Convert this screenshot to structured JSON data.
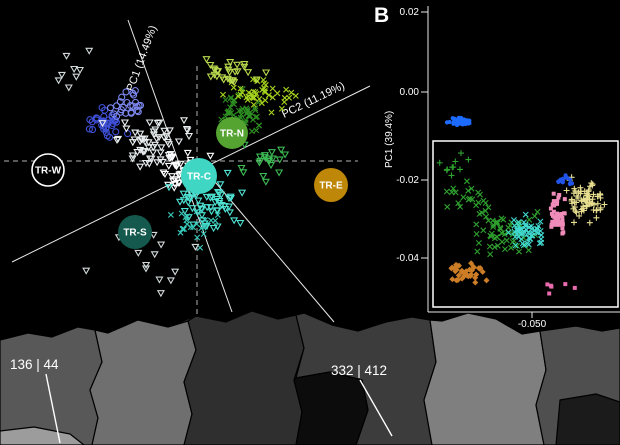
{
  "panel_b": {
    "panel_label": "B",
    "y_tick_labels": [
      "0.02",
      "0.00",
      "-0.02",
      "-0.04"
    ],
    "x_tick_labels": [
      "-0.050"
    ]
  },
  "map": {
    "annotations": [
      {
        "text": "136 | 44"
      },
      {
        "text": "332 | 412"
      }
    ]
  },
  "colors": {
    "background": "#000000",
    "axis": "#e8e8e8",
    "highlight_box": "#ffffff"
  },
  "chart_data": [
    {
      "type": "scatter",
      "panel": "A",
      "ylabel": "PC1 (14.49%)",
      "xlabel": "PC2 (11.19%)",
      "legend_position": "on-plot-badges",
      "grid": "dashed-crosshair",
      "groups": [
        {
          "label": "TR-W",
          "x": 48,
          "y": 170,
          "r": 16,
          "fill": "#000000",
          "stroke": "#ffffff",
          "text_color": "#ffffff"
        },
        {
          "label": "TR-N",
          "x": 232,
          "y": 133,
          "r": 16,
          "fill": "#55a330",
          "stroke": "none",
          "text_color": "#ffffff"
        },
        {
          "label": "TR-C",
          "x": 199,
          "y": 176,
          "r": 18,
          "fill": "#3fd6c4",
          "stroke": "none",
          "text_color": "#ffffff"
        },
        {
          "label": "TR-E",
          "x": 331,
          "y": 185,
          "r": 17,
          "fill": "#bf8708",
          "stroke": "none",
          "text_color": "#ffffff"
        },
        {
          "label": "TR-S",
          "x": 135,
          "y": 232,
          "r": 17,
          "fill": "#15594e",
          "stroke": "none",
          "text_color": "#ffffff"
        }
      ],
      "clusters": [
        {
          "name": "blue-open-circles-dark",
          "marker": "circle-open",
          "color": "#3f50d8",
          "count": 35,
          "cx": 108,
          "cy": 122,
          "sx": 22,
          "sy": 17
        },
        {
          "name": "blue-open-circles-light",
          "marker": "circle-open",
          "color": "#7c87ef",
          "count": 25,
          "cx": 129,
          "cy": 104,
          "sx": 20,
          "sy": 14
        },
        {
          "name": "white-open-triangles-wide",
          "marker": "tri-open",
          "color": "#e9eef0",
          "count": 60,
          "cx": 152,
          "cy": 142,
          "sx": 46,
          "sy": 33
        },
        {
          "name": "white-open-triangles-core",
          "marker": "tri-open",
          "color": "#ffffff",
          "count": 45,
          "cx": 185,
          "cy": 168,
          "sx": 26,
          "sy": 21
        },
        {
          "name": "cyan-open-triangles",
          "marker": "tri-open",
          "color": "#4fe3d4",
          "count": 65,
          "cx": 207,
          "cy": 202,
          "sx": 36,
          "sy": 29
        },
        {
          "name": "green-x",
          "marker": "x",
          "color": "#2e8f22",
          "count": 55,
          "cx": 240,
          "cy": 116,
          "sx": 33,
          "sy": 26
        },
        {
          "name": "yellowgreen-x",
          "marker": "x",
          "color": "#a6d41f",
          "count": 45,
          "cx": 262,
          "cy": 94,
          "sx": 34,
          "sy": 18
        },
        {
          "name": "yellowgreen-open-triangles",
          "marker": "tri-open",
          "color": "#bada4e",
          "count": 28,
          "cx": 228,
          "cy": 72,
          "sx": 40,
          "sy": 13
        },
        {
          "name": "green-open-triangles",
          "marker": "tri-open",
          "color": "#3dbb55",
          "count": 20,
          "cx": 268,
          "cy": 160,
          "sx": 27,
          "sy": 21
        },
        {
          "name": "cyan-x",
          "marker": "x",
          "color": "#38c9ba",
          "count": 25,
          "cx": 195,
          "cy": 226,
          "sx": 29,
          "sy": 21
        },
        {
          "name": "white-outlier-triangles-low",
          "marker": "tri-open",
          "color": "#d2dadc",
          "count": 14,
          "cx": 150,
          "cy": 262,
          "sx": 80,
          "sy": 34
        },
        {
          "name": "white-outlier-triangles-left",
          "marker": "tri-open",
          "color": "#d2dadc",
          "count": 8,
          "cx": 72,
          "cy": 72,
          "sx": 42,
          "sy": 28
        }
      ]
    },
    {
      "type": "scatter",
      "panel": "B",
      "ylabel": "PC1 (39.4%)",
      "y_ticks": [
        0.02,
        0.0,
        -0.02,
        -0.04
      ],
      "x_ticks": [
        -0.05
      ],
      "highlight_box": true,
      "clusters": [
        {
          "name": "blue-dense-bar",
          "marker": "dot",
          "color": "#1d6bff",
          "count": 55,
          "cx": 459,
          "cy": 121,
          "sx": 12,
          "sy": 4
        },
        {
          "name": "green-x-main",
          "marker": "x",
          "color": "#2fa12f",
          "count": 60,
          "cx": 502,
          "cy": 230,
          "sx": 38,
          "sy": 27
        },
        {
          "name": "green-x-upper",
          "marker": "x",
          "color": "#2fa12f",
          "count": 20,
          "cx": 468,
          "cy": 197,
          "sx": 25,
          "sy": 15
        },
        {
          "name": "khaki-plus",
          "marker": "plus",
          "color": "#e6dd8f",
          "count": 75,
          "cx": 586,
          "cy": 200,
          "sx": 22,
          "sy": 23
        },
        {
          "name": "pink-squares",
          "marker": "square",
          "color": "#ef8cba",
          "count": 40,
          "cx": 557,
          "cy": 218,
          "sx": 13,
          "sy": 26
        },
        {
          "name": "cyan-x",
          "marker": "x",
          "color": "#41d9cf",
          "count": 55,
          "cx": 527,
          "cy": 234,
          "sx": 22,
          "sy": 17
        },
        {
          "name": "blue-dots-inner",
          "marker": "dot",
          "color": "#2154e8",
          "count": 16,
          "cx": 566,
          "cy": 181,
          "sx": 11,
          "sy": 6
        },
        {
          "name": "orange-diamonds",
          "marker": "diamond",
          "color": "#cc7d26",
          "count": 38,
          "cx": 466,
          "cy": 271,
          "sx": 22,
          "sy": 12
        },
        {
          "name": "magenta-squares-low",
          "marker": "square",
          "color": "#e86cae",
          "count": 6,
          "cx": 560,
          "cy": 287,
          "sx": 22,
          "sy": 6
        },
        {
          "name": "green-plus-scatter",
          "marker": "plus",
          "color": "#2fa12f",
          "count": 10,
          "cx": 455,
          "cy": 166,
          "sx": 18,
          "sy": 11
        }
      ]
    }
  ]
}
